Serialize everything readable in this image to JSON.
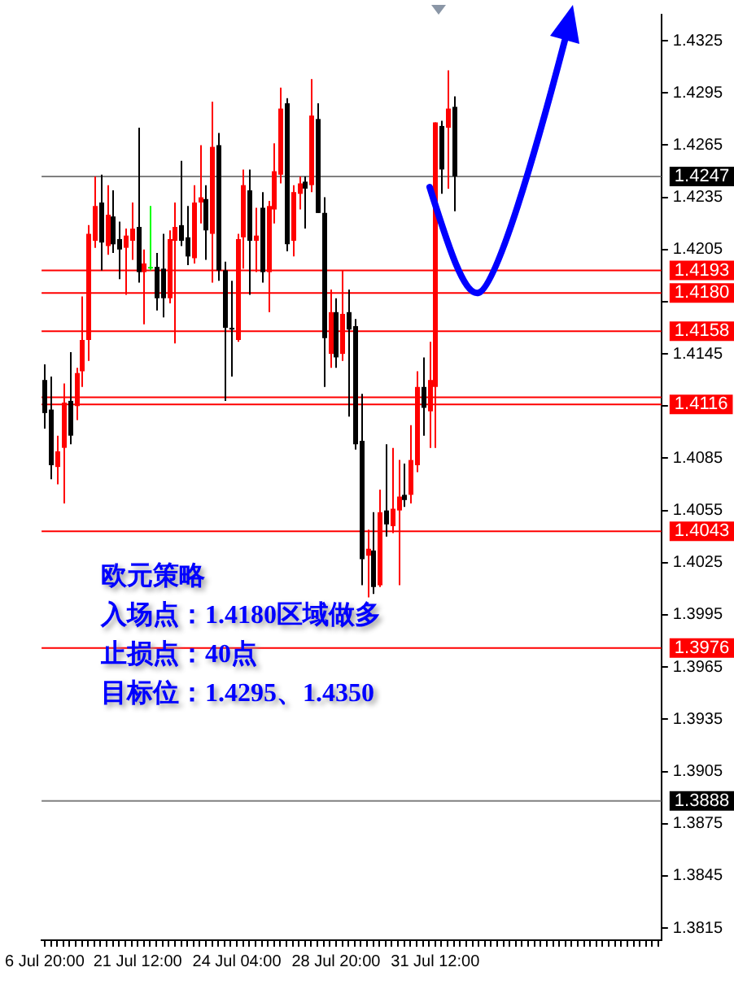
{
  "chart_data": {
    "type": "candlestick",
    "categories": [
      "6 Jul 20:00",
      null,
      null,
      null,
      null,
      null,
      null,
      null,
      null,
      null,
      null,
      null,
      null,
      null,
      null,
      "21 Jul 12:00",
      null,
      null,
      null,
      null,
      null,
      null,
      null,
      null,
      null,
      null,
      null,
      null,
      null,
      null,
      null,
      "24 Jul 04:00",
      null,
      null,
      null,
      null,
      null,
      null,
      null,
      null,
      null,
      null,
      null,
      null,
      null,
      null,
      null,
      "28 Jul 20:00",
      null,
      null,
      null,
      null,
      null,
      null,
      null,
      null,
      null,
      null,
      null,
      null,
      null,
      null,
      null,
      "31 Jul 12:00",
      null,
      null,
      null,
      null,
      null,
      null,
      null,
      null,
      null,
      null,
      null,
      null,
      null,
      null,
      null,
      null,
      null,
      null,
      null,
      null,
      null,
      null,
      null,
      null,
      null,
      null,
      null,
      null,
      null,
      null,
      null,
      null,
      null,
      null,
      null,
      null
    ],
    "ohlc": [
      [
        1.413,
        1.4139,
        1.4102,
        1.4111
      ],
      [
        1.4113,
        1.4132,
        1.4073,
        1.4081
      ],
      [
        1.408,
        1.4098,
        1.407,
        1.4089
      ],
      [
        1.4091,
        1.4128,
        1.4059,
        1.4117
      ],
      [
        1.4118,
        1.4146,
        1.4093,
        1.4098
      ],
      [
        1.4115,
        1.4137,
        1.4107,
        1.4134
      ],
      [
        1.4135,
        1.4178,
        1.4126,
        1.4153
      ],
      [
        1.4153,
        1.4219,
        1.4141,
        1.4214
      ],
      [
        1.421,
        1.4247,
        1.4206,
        1.423
      ],
      [
        1.4232,
        1.4248,
        1.4193,
        1.4209
      ],
      [
        1.4207,
        1.4242,
        1.4202,
        1.4225
      ],
      [
        1.4224,
        1.4239,
        1.4203,
        1.4208
      ],
      [
        1.4211,
        1.4221,
        1.4188,
        1.4205
      ],
      [
        1.4206,
        1.4217,
        1.4179,
        1.4213
      ],
      [
        1.421,
        1.4232,
        1.4199,
        1.4217
      ],
      [
        1.4218,
        1.4275,
        1.4186,
        1.4192
      ],
      [
        1.4192,
        1.4205,
        1.4162,
        1.4197
      ],
      [
        1.4195,
        1.423,
        1.4193,
        1.4195
      ],
      [
        1.4195,
        1.4203,
        1.417,
        1.4177
      ],
      [
        1.4194,
        1.4214,
        1.4166,
        1.4177
      ],
      [
        1.4177,
        1.4216,
        1.4174,
        1.4211
      ],
      [
        1.421,
        1.4232,
        1.4151,
        1.4218
      ],
      [
        1.4219,
        1.4256,
        1.4207,
        1.421
      ],
      [
        1.4212,
        1.423,
        1.4196,
        1.4201
      ],
      [
        1.42,
        1.4242,
        1.4197,
        1.4232
      ],
      [
        1.4232,
        1.4265,
        1.422,
        1.4235
      ],
      [
        1.4234,
        1.4242,
        1.4199,
        1.4216
      ],
      [
        1.4214,
        1.429,
        1.4186,
        1.4264
      ],
      [
        1.4265,
        1.4272,
        1.4187,
        1.4193
      ],
      [
        1.4193,
        1.4198,
        1.4118,
        1.416
      ],
      [
        1.416,
        1.4187,
        1.4132,
        1.4159
      ],
      [
        1.4153,
        1.4214,
        1.4152,
        1.4211
      ],
      [
        1.4212,
        1.4251,
        1.4194,
        1.4242
      ],
      [
        1.4239,
        1.4251,
        1.4179,
        1.421
      ],
      [
        1.421,
        1.4229,
        1.4192,
        1.4213
      ],
      [
        1.4229,
        1.4238,
        1.4186,
        1.4192
      ],
      [
        1.4192,
        1.4233,
        1.4169,
        1.423
      ],
      [
        1.4228,
        1.4266,
        1.422,
        1.425
      ],
      [
        1.4248,
        1.4298,
        1.4243,
        1.4286
      ],
      [
        1.4289,
        1.4292,
        1.4204,
        1.4208
      ],
      [
        1.421,
        1.4242,
        1.4201,
        1.4238
      ],
      [
        1.4237,
        1.4247,
        1.4228,
        1.4243
      ],
      [
        1.4244,
        1.4247,
        1.4217,
        1.424
      ],
      [
        1.4242,
        1.4303,
        1.4238,
        1.4282
      ],
      [
        1.428,
        1.4289,
        1.4226,
        1.4226
      ],
      [
        1.4226,
        1.4235,
        1.4126,
        1.4154
      ],
      [
        1.4145,
        1.4182,
        1.4137,
        1.4169
      ],
      [
        1.4169,
        1.4177,
        1.4137,
        1.4143
      ],
      [
        1.4145,
        1.4193,
        1.4141,
        1.4168
      ],
      [
        1.4169,
        1.4182,
        1.4109,
        1.4159
      ],
      [
        1.4161,
        1.4165,
        1.409,
        1.4093
      ],
      [
        1.4095,
        1.4122,
        1.4012,
        1.4027
      ],
      [
        1.4029,
        1.4044,
        1.4005,
        1.4033
      ],
      [
        1.4032,
        1.4054,
        1.4007,
        1.4011
      ],
      [
        1.4012,
        1.4067,
        1.4011,
        1.4054
      ],
      [
        1.4055,
        1.4093,
        1.404,
        1.4047
      ],
      [
        1.4046,
        1.4091,
        1.4042,
        1.4056
      ],
      [
        1.4055,
        1.4084,
        1.4012,
        1.4063
      ],
      [
        1.4064,
        1.4082,
        1.4057,
        1.4061
      ],
      [
        1.4064,
        1.4104,
        1.4059,
        1.4084
      ],
      [
        1.4081,
        1.4135,
        1.4077,
        1.4126
      ],
      [
        1.4126,
        1.4143,
        1.4098,
        1.4114
      ],
      [
        1.4112,
        1.4152,
        1.4091,
        1.413
      ],
      [
        1.4126,
        1.4278,
        1.4091,
        1.4278
      ],
      [
        1.4276,
        1.4279,
        1.4237,
        1.4251
      ],
      [
        1.4275,
        1.4308,
        1.424,
        1.4286
      ],
      [
        1.4287,
        1.4293,
        1.4227,
        1.4247
      ],
      null,
      null,
      null,
      null,
      null,
      null,
      null,
      null,
      null,
      null,
      null,
      null,
      null,
      null,
      null,
      null,
      null,
      null,
      null,
      null,
      null,
      null,
      null,
      null,
      null,
      null,
      null,
      null,
      null,
      null,
      null,
      null,
      null
    ],
    "colors": [
      "#000000",
      "#000000",
      "#ff0000",
      "#ff0000",
      "#000000",
      "#ff0000",
      "#ff0000",
      "#ff0000",
      "#ff0000",
      "#000000",
      "#ff0000",
      "#000000",
      "#000000",
      "#ff0000",
      "#ff0000",
      "#000000",
      "#ff0000",
      "#00ff00",
      "#000000",
      "#000000",
      "#ff0000",
      "#ff0000",
      "#000000",
      "#000000",
      "#ff0000",
      "#ff0000",
      "#000000",
      "#ff0000",
      "#000000",
      "#000000",
      "#000000",
      "#ff0000",
      "#ff0000",
      "#000000",
      "#ff0000",
      "#000000",
      "#ff0000",
      "#ff0000",
      "#ff0000",
      "#000000",
      "#ff0000",
      "#ff0000",
      "#000000",
      "#ff0000",
      "#000000",
      "#000000",
      "#ff0000",
      "#000000",
      "#ff0000",
      "#000000",
      "#000000",
      "#000000",
      "#ff0000",
      "#000000",
      "#ff0000",
      "#000000",
      "#ff0000",
      "#ff0000",
      "#000000",
      "#ff0000",
      "#ff0000",
      "#000000",
      "#ff0000",
      "#ff0000",
      "#000000",
      "#ff0000",
      "#000000",
      null,
      null,
      null,
      null,
      null,
      null,
      null,
      null,
      null,
      null,
      null,
      null,
      null,
      null,
      null,
      null,
      null,
      null,
      null,
      null,
      null,
      null,
      null,
      null,
      null,
      null,
      null,
      null,
      null,
      null,
      null,
      null,
      null
    ],
    "ylim": [
      1.3808,
      1.434
    ],
    "yticks": [
      1.3815,
      1.3845,
      1.3875,
      1.3905,
      1.3935,
      1.3965,
      1.3995,
      1.4025,
      1.4055,
      1.4085,
      {
        "value": 1.4115,
        "label": null
      },
      1.4145,
      {
        "value": 1.4175,
        "label": null
      },
      1.4205,
      1.4235,
      1.4265,
      1.4295,
      1.4325
    ],
    "ref_lines": [
      {
        "axis": "y",
        "value": 1.4247,
        "label": "1.4247",
        "color": "#808080"
      },
      {
        "axis": "y",
        "value": 1.4193,
        "label": "1.4193",
        "color": "#ff0000"
      },
      {
        "axis": "y",
        "value": 1.418,
        "label": "1.4180",
        "color": "#ff0000"
      },
      {
        "axis": "y",
        "value": 1.4158,
        "label": "1.4158",
        "color": "#ff0000"
      },
      {
        "axis": "y",
        "value": 1.412,
        "label": null,
        "color": "#ff0000"
      },
      {
        "axis": "y",
        "value": 1.4116,
        "label": "1.4116",
        "color": "#ff0000"
      },
      {
        "axis": "y",
        "value": 1.4043,
        "label": "1.4043",
        "color": "#ff0000"
      },
      {
        "axis": "y",
        "value": 1.3976,
        "label": "1.3976",
        "color": "#ff0000"
      },
      {
        "axis": "y",
        "value": 1.3888,
        "label": "1.3888",
        "color": "#808080"
      }
    ],
    "annotations": [
      "欧元策略",
      "入场点：1.4180区域做多",
      "止损点：40点",
      "目标位：1.4295、1.4350"
    ],
    "grid": false,
    "legend": false
  }
}
